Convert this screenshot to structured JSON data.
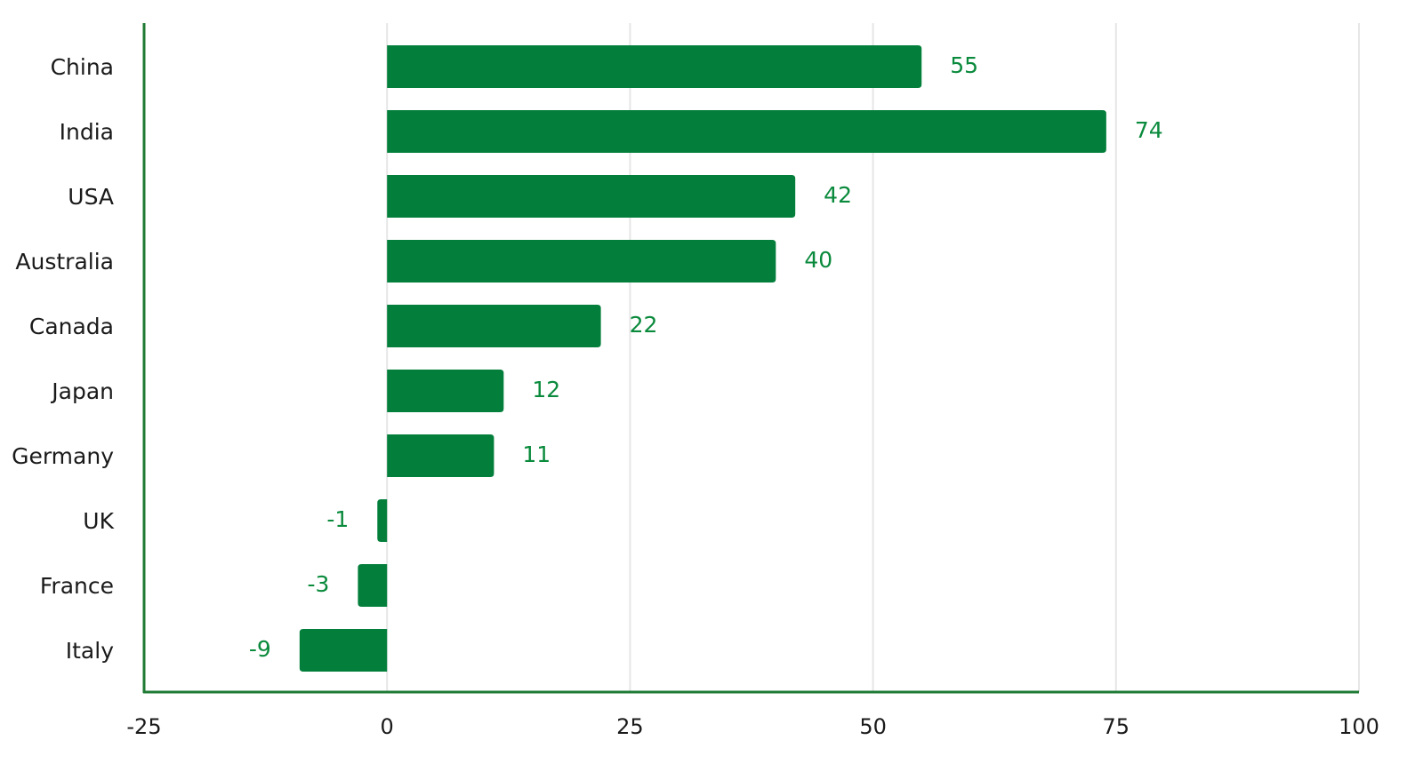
{
  "chart_data": {
    "type": "bar",
    "orientation": "horizontal",
    "categories": [
      "China",
      "India",
      "USA",
      "Australia",
      "Canada",
      "Japan",
      "Germany",
      "UK",
      "France",
      "Italy"
    ],
    "values": [
      55,
      74,
      42,
      40,
      22,
      12,
      11,
      -1,
      -3,
      -9
    ],
    "value_labels": [
      "55",
      "74",
      "42",
      "40",
      "22",
      "12",
      "11",
      "-1",
      "-3",
      "-9"
    ],
    "xlim": [
      -25,
      100
    ],
    "xticks": [
      -25,
      0,
      25,
      50,
      75,
      100
    ],
    "xtick_labels": [
      "-25",
      "0",
      "25",
      "50",
      "75",
      "100"
    ],
    "grid": true,
    "legend": "none",
    "colors": {
      "bar": "#037f3b",
      "value_label": "#0a8a3c",
      "axis": "#1f7a34",
      "grid": "#e6e6e6"
    }
  }
}
